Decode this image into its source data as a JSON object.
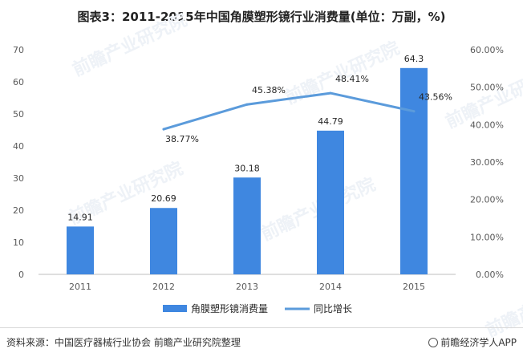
{
  "title": "图表3：2011-2015年中国角膜塑形镜行业消费量(单位：万副，%)",
  "chart_data": {
    "type": "bar",
    "categories": [
      "2011",
      "2012",
      "2013",
      "2014",
      "2015"
    ],
    "series": [
      {
        "name": "角膜塑形镜消费量",
        "type": "bar",
        "axis": "left",
        "values": [
          14.91,
          20.69,
          30.18,
          44.79,
          64.3
        ],
        "labels": [
          "14.91",
          "20.69",
          "30.18",
          "44.79",
          "64.3"
        ]
      },
      {
        "name": "同比增长",
        "type": "line",
        "axis": "right",
        "values": [
          null,
          38.77,
          45.38,
          48.41,
          43.56
        ],
        "labels": [
          "",
          "38.77%",
          "45.38%",
          "48.41%",
          "43.56%"
        ]
      }
    ],
    "y_left": {
      "ylim": [
        0,
        70
      ],
      "ticks": [
        "0",
        "10",
        "20",
        "30",
        "40",
        "50",
        "60",
        "70"
      ]
    },
    "y_right": {
      "ylim": [
        0,
        60
      ],
      "ticks": [
        "0.00%",
        "10.00%",
        "20.00%",
        "30.00%",
        "40.00%",
        "50.00%",
        "60.00%"
      ]
    },
    "grid": false,
    "legend_position": "bottom",
    "colors": {
      "bar": "#3f87e0",
      "line": "#5b9bdb"
    }
  },
  "watermark": "前瞻产业研究院",
  "source": "资料来源：中国医疗器械行业协会 前瞻产业研究院整理",
  "brand": "前瞻经济学人APP"
}
